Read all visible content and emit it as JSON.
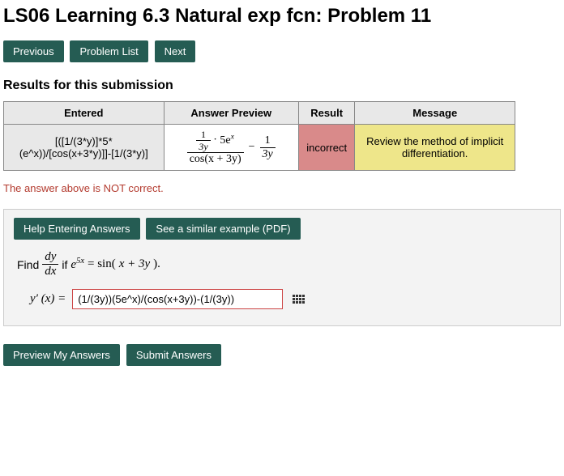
{
  "title": "LS06 Learning 6.3 Natural exp fcn: Problem 11",
  "nav": {
    "previous": "Previous",
    "problemList": "Problem List",
    "next": "Next"
  },
  "resultsHeading": "Results for this submission",
  "resultsTable": {
    "headers": {
      "entered": "Entered",
      "preview": "Answer Preview",
      "result": "Result",
      "message": "Message"
    },
    "row": {
      "entered_l1": "[([1/(3*y)]*5*",
      "entered_l2": "(e^x))/[cos(x+3*y)]]-[1/(3*y)]",
      "preview_num_a": "1",
      "preview_num_b": "3y",
      "preview_num_c": "5e",
      "preview_num_exp": "x",
      "preview_den": "cos(x + 3y)",
      "preview_rnum": "1",
      "preview_rden": "3y",
      "result": "incorrect",
      "message": "Review the method of implicit differentiation."
    }
  },
  "notCorrect": "The answer above is NOT correct.",
  "help": {
    "entering": "Help Entering Answers",
    "similar": "See a similar example (PDF)"
  },
  "problem": {
    "findWord": "Find",
    "dyNum": "dy",
    "dyDen": "dx",
    "ifWord": " if ",
    "lhs_e": "e",
    "lhs_exp": "5x",
    "eq": " = sin(",
    "rhs_inner": "x + 3y",
    "rhs_close": ").",
    "yprime": "y′ (x) =",
    "answerValue": "(1/(3y))(5e^x)/(cos(x+3y))-(1/(3y))"
  },
  "buttons": {
    "preview": "Preview My Answers",
    "submit": "Submit Answers"
  },
  "colors": {
    "btnBg": "#255c53",
    "incorrectBg": "#d98a8a",
    "messageBg": "#eee68a",
    "headerBg": "#e8e8e8",
    "errorText": "#b33a2e",
    "inputBorder": "#c44"
  }
}
